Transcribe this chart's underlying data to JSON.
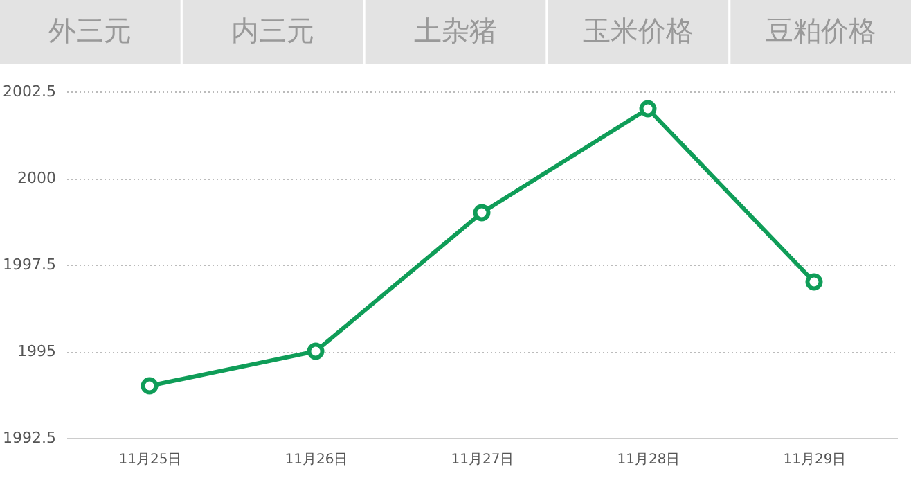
{
  "chart_data": {
    "type": "line",
    "categories": [
      "11月25日",
      "11月26日",
      "11月27日",
      "11月28日",
      "11月29日"
    ],
    "series": [
      {
        "color": "#0f9d58",
        "values": [
          1994,
          1995,
          1999,
          2002,
          1997
        ]
      }
    ],
    "ylim": [
      1992.5,
      2002.5
    ],
    "yticks": [
      1992.5,
      1995,
      1997.5,
      2000,
      2002.5
    ],
    "grid": "y",
    "marker": "circle",
    "line_style": "solid",
    "legend": false,
    "annotations": [
      "外三元",
      "内三元",
      "土杂猪",
      "玉米价格",
      "豆粕价格"
    ]
  }
}
